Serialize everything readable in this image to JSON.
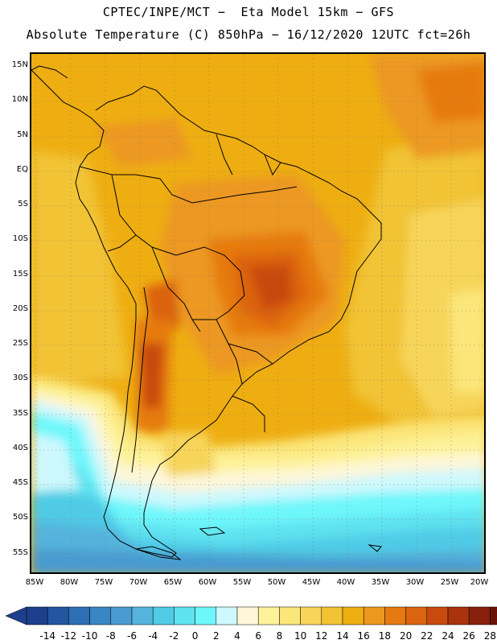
{
  "title_line1": "CPTEC/INPE/MCT −  Eta Model 15km − GFS",
  "title_line2": "Absolute Temperature (C) 850hPa − 16/12/2020 12UTC fct=26h",
  "lat_labels": [
    "15N",
    "10N",
    "5N",
    "EQ",
    "5S",
    "10S",
    "15S",
    "20S",
    "25S",
    "30S",
    "35S",
    "40S",
    "45S",
    "50S",
    "55S"
  ],
  "lon_labels": [
    "85W",
    "80W",
    "75W",
    "70W",
    "65W",
    "60W",
    "55W",
    "50W",
    "45W",
    "40W",
    "35W",
    "30W",
    "25W",
    "20W"
  ],
  "colorbar": {
    "labels": [
      "-14",
      "-12",
      "-10",
      "-8",
      "-6",
      "-4",
      "-2",
      "0",
      "2",
      "4",
      "6",
      "8",
      "10",
      "12",
      "14",
      "16",
      "18",
      "20",
      "22",
      "24",
      "26",
      "28"
    ],
    "colors": [
      "#1e3f8c",
      "#2456a0",
      "#2d6fb4",
      "#3a86c4",
      "#4a9bd0",
      "#55b3dc",
      "#4fcbe6",
      "#5ee2f0",
      "#6ef7fb",
      "#cdf8fd",
      "#fdf6d8",
      "#fdf29a",
      "#fbe67a",
      "#f7d55a",
      "#f1c335",
      "#eeae12",
      "#ec9820",
      "#e67a10",
      "#db6410",
      "#c84a0c",
      "#a8330c",
      "#87200c",
      "#6a1208"
    ]
  }
}
